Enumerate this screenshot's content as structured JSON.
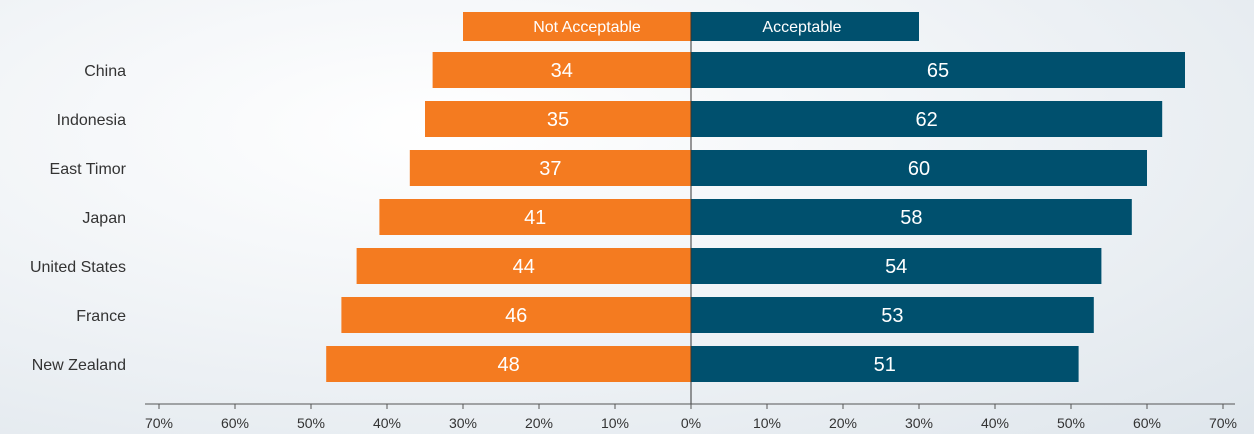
{
  "chart_data": {
    "type": "bar",
    "orientation": "horizontal-diverging",
    "categories": [
      "China",
      "Indonesia",
      "East Timor",
      "Japan",
      "United States",
      "France",
      "New Zealand"
    ],
    "series": [
      {
        "name": "Not Acceptable",
        "values": [
          34,
          35,
          37,
          41,
          44,
          46,
          48
        ],
        "color": "#f47b20",
        "direction": "left"
      },
      {
        "name": "Acceptable",
        "values": [
          65,
          62,
          60,
          58,
          54,
          53,
          51
        ],
        "color": "#00506e",
        "direction": "right"
      }
    ],
    "xlim": [
      -70,
      70
    ],
    "x_ticks": [
      "70%",
      "60%",
      "50%",
      "40%",
      "30%",
      "20%",
      "10%",
      "0%",
      "10%",
      "20%",
      "30%",
      "40%",
      "50%",
      "60%",
      "70%"
    ],
    "grid": false,
    "legend_placement": "top-center"
  }
}
